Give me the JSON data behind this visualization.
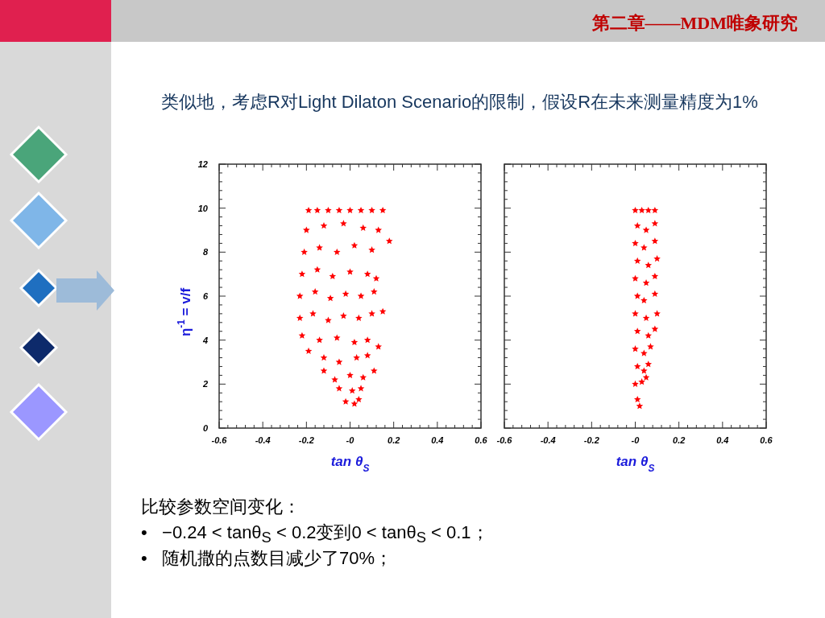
{
  "chart_data": [
    {
      "type": "scatter",
      "xlabel": "tan θ$_{S}$",
      "ylabel": "η$^{-1}$ = v/f",
      "annotations": [
        "类似地，考虑R对Light Dilaton Scenario的限制，假设R在未来测量精度为1%",
        "比较参数空间变化：",
        "•   −0.24 < tanθ$_{S}$ < 0.2变到0 < tanθ$_{S}$ < 0.1；",
        "•   随机撒的点数目减少了70%；"
      ],
      "xlim": [
        -0.6,
        0.6
      ],
      "xticks": [
        -0.6,
        -0.4,
        -0.2,
        {
          "value": 0,
          "label": "-0"
        },
        0.2,
        0.4,
        0.6
      ],
      "ylim": [
        0,
        12
      ],
      "yticks": [
        0,
        2,
        4,
        6,
        8,
        10,
        12
      ],
      "marker": "star",
      "series": [
        {
          "color": "#ff0000",
          "x": [
            -0.19,
            -0.15,
            -0.1,
            -0.05,
            0,
            0.05,
            0.1,
            0.15,
            -0.2,
            -0.12,
            -0.03,
            0.06,
            0.13,
            0.18,
            -0.21,
            -0.14,
            -0.06,
            0.02,
            0.1,
            -0.22,
            -0.15,
            -0.08,
            0,
            0.08,
            0.12,
            -0.23,
            -0.16,
            -0.09,
            -0.02,
            0.05,
            0.11,
            -0.23,
            -0.17,
            -0.1,
            -0.03,
            0.04,
            0.1,
            0.15,
            -0.22,
            -0.14,
            -0.06,
            0.02,
            0.08,
            0.13,
            -0.19,
            -0.12,
            -0.05,
            0.03,
            0.08,
            -0.12,
            -0.07,
            0,
            0.06,
            0.11,
            -0.05,
            0.01,
            0.05,
            -0.02,
            0.02,
            0.04
          ],
          "values": [
            9.9,
            9.9,
            9.9,
            9.9,
            9.9,
            9.9,
            9.9,
            9.9,
            9.0,
            9.2,
            9.3,
            9.1,
            9.0,
            8.5,
            8.0,
            8.2,
            8.0,
            8.3,
            8.1,
            7.0,
            7.2,
            6.9,
            7.1,
            7.0,
            6.8,
            6.0,
            6.2,
            5.9,
            6.1,
            6.0,
            6.2,
            5.0,
            5.2,
            4.9,
            5.1,
            5.0,
            5.2,
            5.3,
            4.2,
            4.0,
            4.1,
            3.9,
            4.0,
            3.7,
            3.5,
            3.2,
            3.0,
            3.2,
            3.3,
            2.6,
            2.2,
            2.4,
            2.3,
            2.6,
            1.8,
            1.7,
            1.8,
            1.2,
            1.1,
            1.3
          ]
        }
      ]
    },
    {
      "type": "scatter",
      "title": "第二章——MDM唯象研究",
      "xlabel": "tan θ$_{S}$",
      "xlim": [
        -0.6,
        0.6
      ],
      "xticks": [
        -0.6,
        -0.4,
        -0.2,
        {
          "value": 0,
          "label": "-0"
        },
        0.2,
        0.4,
        0.6
      ],
      "ylim": [
        0,
        12
      ],
      "yticks": [
        0,
        2,
        4,
        6,
        8,
        10,
        12
      ],
      "tick_labels": "x",
      "marker": "star",
      "series": [
        {
          "color": "#ff0000",
          "x": [
            0,
            0.03,
            0.06,
            0.09,
            0.01,
            0.05,
            0.09,
            0,
            0.04,
            0.09,
            0.01,
            0.06,
            0.1,
            0,
            0.05,
            0.09,
            0.01,
            0.04,
            0.09,
            0,
            0.05,
            0.1,
            0.01,
            0.06,
            0.09,
            0,
            0.04,
            0.07,
            0.01,
            0.04,
            0.06,
            0,
            0.03,
            0.05,
            0.01,
            0.02
          ],
          "values": [
            9.9,
            9.9,
            9.9,
            9.9,
            9.2,
            9.0,
            9.3,
            8.4,
            8.2,
            8.5,
            7.6,
            7.4,
            7.7,
            6.8,
            6.6,
            6.9,
            6.0,
            5.8,
            6.1,
            5.2,
            5.0,
            5.2,
            4.4,
            4.2,
            4.5,
            3.6,
            3.4,
            3.7,
            2.8,
            2.6,
            2.9,
            2.0,
            2.1,
            2.3,
            1.3,
            1.0
          ]
        }
      ]
    }
  ]
}
